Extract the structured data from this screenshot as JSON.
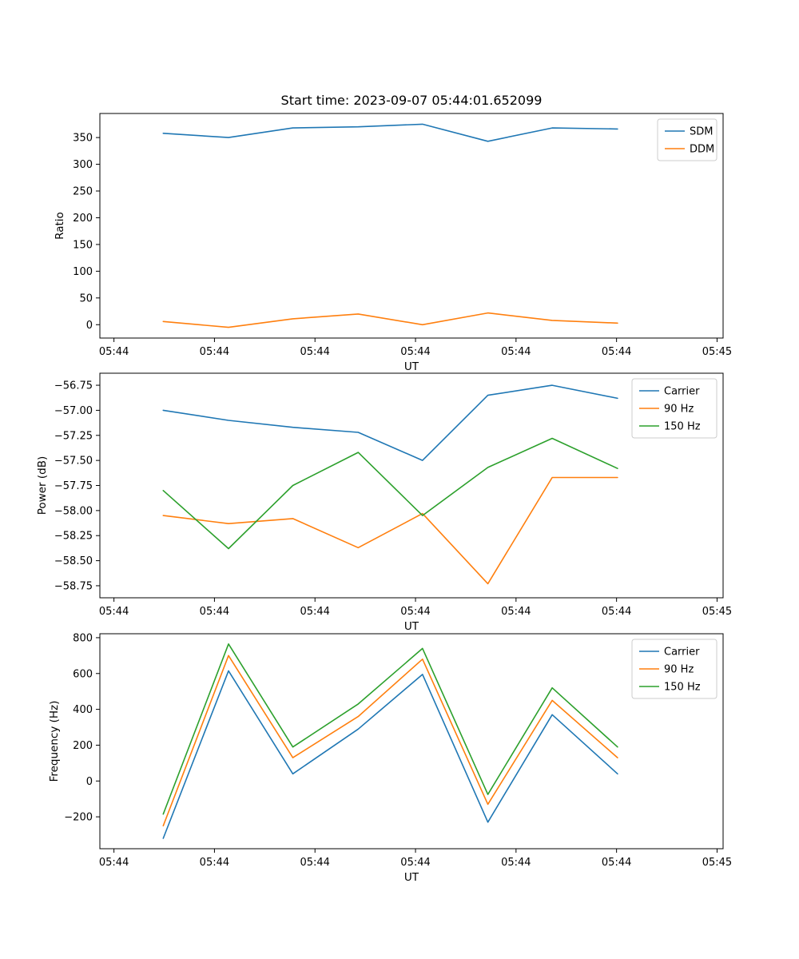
{
  "figure": {
    "title": "Start time: 2023-09-07 05:44:01.652099",
    "background": "#ffffff"
  },
  "colors": {
    "blue": "#1f77b4",
    "orange": "#ff7f0e",
    "green": "#2ca02c"
  },
  "chart_data": [
    {
      "id": "ratio",
      "type": "line",
      "title": "",
      "xlabel": "UT",
      "ylabel": "Ratio",
      "xlim": [
        -1.4,
        60.6
      ],
      "ylim": [
        -25,
        395
      ],
      "yticks": [
        0,
        50,
        100,
        150,
        200,
        250,
        300,
        350
      ],
      "ytick_decimals": 0,
      "xtick_positions": [
        0,
        10,
        20,
        30,
        40,
        50,
        60
      ],
      "xtick_labels": [
        "05:44",
        "05:44",
        "05:44",
        "05:44",
        "05:44",
        "05:44",
        "05:45"
      ],
      "x": [
        4.9,
        11.4,
        17.8,
        24.3,
        30.7,
        37.2,
        43.6,
        50.1
      ],
      "legend_position": "upper right",
      "grid": false,
      "series": [
        {
          "name": "SDM",
          "color": "#1f77b4",
          "values": [
            358,
            350,
            368,
            370,
            375,
            343,
            368,
            366
          ]
        },
        {
          "name": "DDM",
          "color": "#ff7f0e",
          "values": [
            6,
            -5,
            11,
            20,
            0,
            22,
            8,
            3
          ]
        }
      ]
    },
    {
      "id": "power",
      "type": "line",
      "title": "",
      "xlabel": "UT",
      "ylabel": "Power (dB)",
      "xlim": [
        -1.4,
        60.6
      ],
      "ylim": [
        -58.87,
        -56.63
      ],
      "yticks": [
        -58.75,
        -58.5,
        -58.25,
        -58.0,
        -57.75,
        -57.5,
        -57.25,
        -57.0,
        -56.75
      ],
      "ytick_decimals": 2,
      "xtick_positions": [
        0,
        10,
        20,
        30,
        40,
        50,
        60
      ],
      "xtick_labels": [
        "05:44",
        "05:44",
        "05:44",
        "05:44",
        "05:44",
        "05:44",
        "05:45"
      ],
      "x": [
        4.9,
        11.4,
        17.8,
        24.3,
        30.7,
        37.2,
        43.6,
        50.1
      ],
      "legend_position": "upper right",
      "grid": false,
      "series": [
        {
          "name": "Carrier",
          "color": "#1f77b4",
          "values": [
            -57.0,
            -57.1,
            -57.17,
            -57.22,
            -57.5,
            -56.85,
            -56.75,
            -56.88
          ]
        },
        {
          "name": "90 Hz",
          "color": "#ff7f0e",
          "values": [
            -58.05,
            -58.13,
            -58.08,
            -58.37,
            -58.03,
            -58.73,
            -57.67,
            -57.67
          ]
        },
        {
          "name": "150 Hz",
          "color": "#2ca02c",
          "values": [
            -57.8,
            -58.38,
            -57.75,
            -57.42,
            -58.05,
            -57.57,
            -57.28,
            -57.58
          ]
        }
      ]
    },
    {
      "id": "frequency",
      "type": "line",
      "title": "",
      "xlabel": "UT",
      "ylabel": "Frequency (Hz)",
      "xlim": [
        -1.4,
        60.6
      ],
      "ylim": [
        -378,
        822
      ],
      "yticks": [
        -200,
        0,
        200,
        400,
        600,
        800
      ],
      "ytick_decimals": 0,
      "xtick_positions": [
        0,
        10,
        20,
        30,
        40,
        50,
        60
      ],
      "xtick_labels": [
        "05:44",
        "05:44",
        "05:44",
        "05:44",
        "05:44",
        "05:44",
        "05:45"
      ],
      "x": [
        4.9,
        11.4,
        17.8,
        24.3,
        30.7,
        37.2,
        43.6,
        50.1
      ],
      "legend_position": "upper right",
      "grid": false,
      "series": [
        {
          "name": "Carrier",
          "color": "#1f77b4",
          "values": [
            -320,
            615,
            40,
            290,
            595,
            -230,
            370,
            40
          ]
        },
        {
          "name": "90 Hz",
          "color": "#ff7f0e",
          "values": [
            -250,
            700,
            130,
            360,
            680,
            -130,
            450,
            130
          ]
        },
        {
          "name": "150 Hz",
          "color": "#2ca02c",
          "values": [
            -185,
            765,
            190,
            430,
            740,
            -75,
            520,
            190
          ]
        }
      ]
    }
  ]
}
